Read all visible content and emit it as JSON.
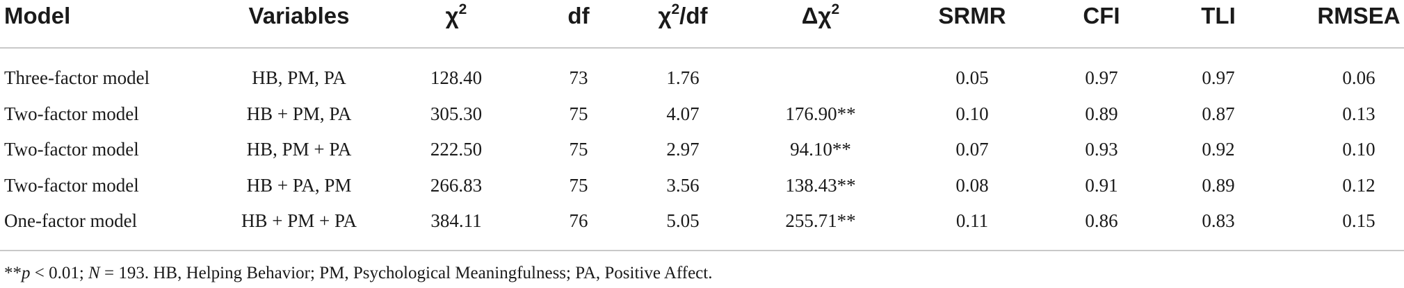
{
  "table": {
    "headers": {
      "model": "Model",
      "variables": "Variables",
      "chi2": "χ",
      "chi2_sup": "2",
      "df": "df",
      "chi2df_pre": "χ",
      "chi2df_sup": "2",
      "chi2df_post": "/df",
      "dchi2": "Δχ",
      "dchi2_sup": "2",
      "srmr": "SRMR",
      "cfi": "CFI",
      "tli": "TLI",
      "rmsea": "RMSEA"
    },
    "rows": [
      {
        "model": "Three-factor model",
        "variables": "HB, PM, PA",
        "chi2": "128.40",
        "df": "73",
        "chi2df": "1.76",
        "dchi2": "",
        "srmr": "0.05",
        "cfi": "0.97",
        "tli": "0.97",
        "rmsea": "0.06"
      },
      {
        "model": "Two-factor model",
        "variables": "HB + PM, PA",
        "chi2": "305.30",
        "df": "75",
        "chi2df": "4.07",
        "dchi2": "176.90**",
        "srmr": "0.10",
        "cfi": "0.89",
        "tli": "0.87",
        "rmsea": "0.13"
      },
      {
        "model": "Two-factor model",
        "variables": "HB, PM + PA",
        "chi2": "222.50",
        "df": "75",
        "chi2df": "2.97",
        "dchi2": "94.10**",
        "srmr": "0.07",
        "cfi": "0.93",
        "tli": "0.92",
        "rmsea": "0.10"
      },
      {
        "model": "Two-factor model",
        "variables": "HB + PA, PM",
        "chi2": "266.83",
        "df": "75",
        "chi2df": "3.56",
        "dchi2": "138.43**",
        "srmr": "0.08",
        "cfi": "0.91",
        "tli": "0.89",
        "rmsea": "0.12"
      },
      {
        "model": "One-factor model",
        "variables": "HB + PM + PA",
        "chi2": "384.11",
        "df": "76",
        "chi2df": "5.05",
        "dchi2": "255.71**",
        "srmr": "0.11",
        "cfi": "0.86",
        "tli": "0.83",
        "rmsea": "0.15"
      }
    ],
    "footnote": {
      "stars": "**",
      "p": "p",
      "p_rest": " < 0.01; ",
      "n": "N",
      "n_rest": " = 193. HB, Helping Behavior; PM, Psychological Meaningfulness; PA, Positive Affect."
    }
  }
}
